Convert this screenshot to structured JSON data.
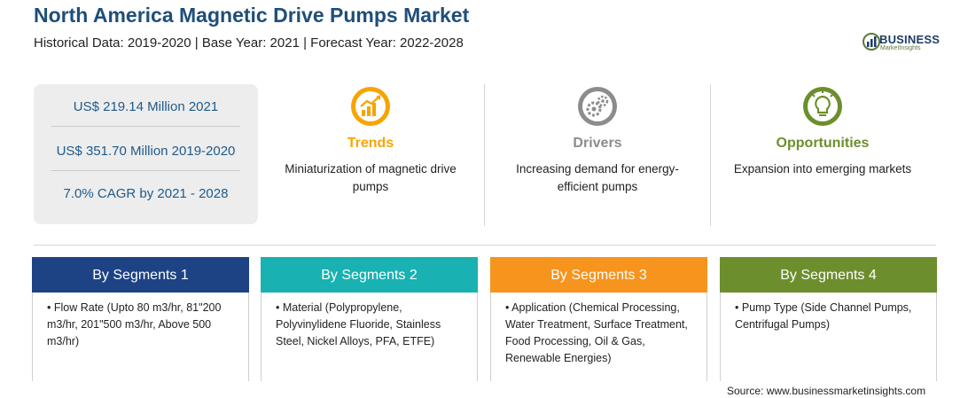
{
  "header": {
    "title": "North America Magnetic Drive Pumps Market",
    "subtitle": "Historical Data: 2019-2020 | Base Year: 2021 | Forecast Year: 2022-2028"
  },
  "logo": {
    "name": "BUSINESS",
    "tagline": "MarketInsights",
    "colors": {
      "primary": "#1f3d66",
      "accent": "#5a7a3a"
    }
  },
  "stats": [
    "US$ 219.14 Million 2021",
    "US$ 351.70 Million 2019-2020",
    "7.0% CAGR by 2021 - 2028"
  ],
  "insights": {
    "trends": {
      "heading": "Trends",
      "text": "Miniaturization of magnetic drive pumps",
      "icon": "growth-chart-icon",
      "color": "#f7a400"
    },
    "drivers": {
      "heading": "Drivers",
      "text": "Increasing demand for energy-efficient pumps",
      "icon": "gears-icon",
      "color": "#8c8c8c"
    },
    "opportunities": {
      "heading": "Opportunities",
      "text": "Expansion into emerging markets",
      "icon": "lightbulb-icon",
      "color": "#6c8e2d"
    }
  },
  "segments": [
    {
      "title": "By Segments 1",
      "text": "Flow Rate (Upto 80 m3/hr, 81\"200 m3/hr, 201\"500 m3/hr, Above 500 m3/hr)",
      "color": "#1d4385"
    },
    {
      "title": "By Segments 2",
      "text": "Material (Polypropylene, Polyvinylidene Fluoride, Stainless Steel, Nickel Alloys, PFA, ETFE)",
      "color": "#19b1b1"
    },
    {
      "title": "By Segments 3",
      "text": "Application (Chemical Processing, Water Treatment, Surface Treatment, Food Processing, Oil & Gas, Renewable Energies)",
      "color": "#f7941d"
    },
    {
      "title": "By Segments 4",
      "text": "Pump Type (Side Channel Pumps, Centrifugal Pumps)",
      "color": "#6c8e2d"
    }
  ],
  "footer": {
    "source": "Source: www.businessmarketinsights.com"
  }
}
